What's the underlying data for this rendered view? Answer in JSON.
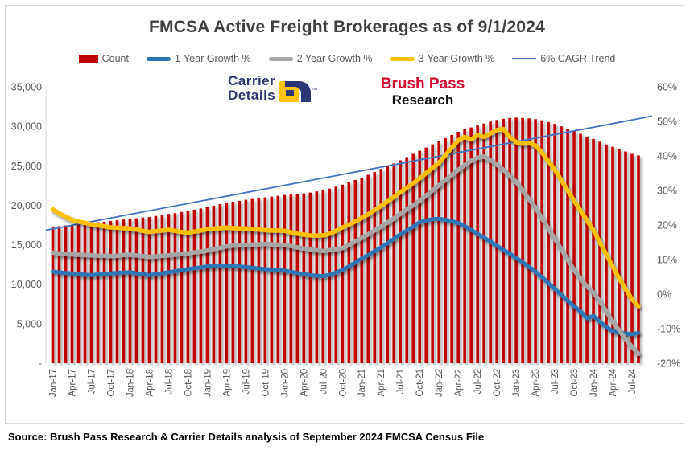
{
  "title": "FMCSA Active Freight Brokerages as of 9/1/2024",
  "source_note": "Source: Brush Pass Research & Carrier Details analysis of September 2024 FMCSA Census File",
  "logos": {
    "carrier_details": {
      "line1": "Carrier",
      "line2": "Details",
      "tm": "™"
    },
    "brush_pass": {
      "line1": "Brush Pass",
      "line2": "Research"
    }
  },
  "colors": {
    "bar_red": "#C00000",
    "growth1_blue": "#2E75B6",
    "growth2_gray": "#A6A6A6",
    "growth3_yellow": "#FFC000",
    "trend_blue": "#4472C4",
    "axis_text": "#595959",
    "title_text": "#3F3F3F",
    "border": "#D9D9D9"
  },
  "chart_data": {
    "type": "combo (monthly bars + growth lines)",
    "n_points": 92,
    "points_per_x_tick": 3,
    "left_axis": {
      "min": 0,
      "max": 35000,
      "ticks": [
        {
          "label": "35,000",
          "value": 35000
        },
        {
          "label": "30,000",
          "value": 30000
        },
        {
          "label": "25,000",
          "value": 25000
        },
        {
          "label": "20,000",
          "value": 20000
        },
        {
          "label": "15,000",
          "value": 15000
        },
        {
          "label": "10,000",
          "value": 10000
        },
        {
          "label": "5,000",
          "value": 5000
        },
        {
          "label": "-",
          "value": 0
        }
      ]
    },
    "right_axis": {
      "min": -20,
      "max": 60,
      "ticks": [
        {
          "label": "60%",
          "value": 60
        },
        {
          "label": "50%",
          "value": 50
        },
        {
          "label": "40%",
          "value": 40
        },
        {
          "label": "30%",
          "value": 30
        },
        {
          "label": "20%",
          "value": 20
        },
        {
          "label": "10%",
          "value": 10
        },
        {
          "label": "0%",
          "value": 0
        },
        {
          "label": "-10%",
          "value": -10
        },
        {
          "label": "-20%",
          "value": -20
        }
      ]
    },
    "x_tick_labels": [
      "Jan-17",
      "Apr-17",
      "Jul-17",
      "Oct-17",
      "Jan-18",
      "Apr-18",
      "Jul-18",
      "Oct-18",
      "Jan-19",
      "Apr-19",
      "Jul-19",
      "Oct-19",
      "Jan-20",
      "Apr-20",
      "Jul-20",
      "Oct-20",
      "Jan-21",
      "Apr-21",
      "Jul-21",
      "Oct-21",
      "Jan-22",
      "Apr-22",
      "Jul-22",
      "Oct-22",
      "Jan-23",
      "Apr-23",
      "Jul-23",
      "Oct-23",
      "Jan-24",
      "Apr-24",
      "Jul-24"
    ],
    "series": [
      {
        "name": "Count",
        "type": "bar",
        "axis": "left",
        "color": "#C00000",
        "values": [
          17300,
          17350,
          17450,
          17500,
          17600,
          17700,
          17750,
          17850,
          17900,
          18000,
          18100,
          18200,
          18300,
          18350,
          18450,
          18500,
          18650,
          18750,
          18900,
          19000,
          19150,
          19300,
          19450,
          19600,
          19800,
          19950,
          20150,
          20300,
          20450,
          20550,
          20700,
          20800,
          20900,
          21000,
          21100,
          21200,
          21300,
          21350,
          21450,
          21500,
          21600,
          21750,
          21900,
          22100,
          22350,
          22600,
          22900,
          23200,
          23500,
          23850,
          24200,
          24600,
          24950,
          25300,
          25700,
          26100,
          26500,
          26900,
          27300,
          27700,
          28100,
          28500,
          28900,
          29300,
          29600,
          29850,
          30100,
          30350,
          30600,
          30800,
          30950,
          31050,
          31100,
          31050,
          31000,
          30900,
          30750,
          30550,
          30300,
          30000,
          29700,
          29400,
          29050,
          28700,
          28400,
          28050,
          27700,
          27400,
          27100,
          26800,
          26500,
          26300
        ]
      },
      {
        "name": "1-Year Growth %",
        "type": "line",
        "axis": "right",
        "color": "#2E75B6",
        "values": [
          6.5,
          6.3,
          6.1,
          6.0,
          5.8,
          5.6,
          5.5,
          5.7,
          5.8,
          6.0,
          6.1,
          6.2,
          6.3,
          6.0,
          5.8,
          5.5,
          5.8,
          6.0,
          6.3,
          6.6,
          6.9,
          7.2,
          7.5,
          7.7,
          8.0,
          8.1,
          8.2,
          8.2,
          8.1,
          8.0,
          7.8,
          7.6,
          7.4,
          7.2,
          7.1,
          6.9,
          6.8,
          6.5,
          6.1,
          5.8,
          5.5,
          5.3,
          5.2,
          5.6,
          6.2,
          7.0,
          8.0,
          9.1,
          10.3,
          11.3,
          12.4,
          13.5,
          14.7,
          16.0,
          17.3,
          18.4,
          19.5,
          20.8,
          21.3,
          21.7,
          21.8,
          21.5,
          21.1,
          20.6,
          19.7,
          18.6,
          17.5,
          16.3,
          15.2,
          14.0,
          12.8,
          11.7,
          10.5,
          9.2,
          7.9,
          6.5,
          4.9,
          3.2,
          1.5,
          -0.2,
          -1.9,
          -3.5,
          -5.0,
          -7.0,
          -6.3,
          -8.0,
          -9.5,
          -10.7,
          -11.2,
          -11.4,
          -11.6,
          -11.2
        ]
      },
      {
        "name": "2 Year Growth %",
        "type": "line",
        "axis": "right",
        "color": "#A6A6A6",
        "values": [
          12.0,
          11.8,
          11.6,
          11.5,
          11.4,
          11.3,
          11.2,
          11.1,
          11.1,
          11.0,
          11.1,
          11.3,
          11.4,
          11.2,
          11.0,
          10.8,
          10.9,
          11.1,
          11.2,
          11.4,
          11.6,
          11.8,
          12.1,
          12.3,
          12.6,
          13.0,
          13.4,
          13.8,
          14.0,
          14.1,
          14.2,
          14.3,
          14.4,
          14.5,
          14.4,
          14.3,
          14.2,
          13.9,
          13.5,
          13.2,
          12.9,
          12.7,
          12.5,
          12.7,
          13.0,
          13.3,
          14.2,
          15.2,
          16.2,
          17.3,
          18.4,
          19.5,
          20.7,
          21.9,
          23.2,
          24.5,
          25.7,
          27.0,
          28.5,
          30.0,
          31.5,
          33.0,
          34.5,
          36.0,
          37.3,
          38.6,
          39.5,
          39.8,
          38.8,
          37.5,
          36.0,
          34.3,
          32.5,
          30.0,
          27.5,
          25.0,
          22.0,
          19.0,
          16.0,
          13.0,
          10.0,
          7.0,
          4.5,
          2.2,
          0.5,
          -2.0,
          -5.0,
          -8.0,
          -10.5,
          -13.0,
          -15.3,
          -17.3
        ]
      },
      {
        "name": "3-Year Growth %",
        "type": "line",
        "axis": "right",
        "color": "#FFC000",
        "values": [
          24.5,
          23.4,
          22.4,
          21.5,
          21.0,
          20.6,
          20.2,
          19.9,
          19.6,
          19.3,
          19.2,
          19.1,
          19.0,
          18.7,
          18.3,
          18.0,
          18.2,
          18.4,
          18.6,
          18.3,
          18.0,
          17.8,
          18.1,
          18.4,
          18.8,
          19.0,
          19.1,
          19.2,
          19.1,
          19.0,
          19.0,
          18.8,
          18.7,
          18.5,
          18.4,
          18.4,
          18.3,
          17.9,
          17.5,
          17.2,
          17.0,
          16.9,
          17.0,
          17.5,
          18.3,
          19.3,
          20.1,
          21.0,
          22.0,
          23.1,
          24.3,
          25.5,
          26.8,
          28.1,
          29.5,
          30.8,
          32.1,
          33.5,
          35.0,
          36.5,
          38.0,
          40.2,
          42.4,
          44.5,
          45.5,
          44.8,
          46.0,
          45.5,
          46.5,
          47.5,
          47.8,
          45.5,
          44.0,
          43.5,
          43.8,
          43.0,
          41.0,
          38.5,
          36.0,
          33.0,
          30.0,
          27.0,
          24.2,
          21.3,
          18.5,
          15.0,
          11.5,
          8.0,
          4.5,
          1.5,
          -1.5,
          -3.5
        ]
      },
      {
        "name": "6% CAGR Trend",
        "type": "line-straight",
        "axis": "right",
        "color": "#4472C4",
        "start_pct": 18.5,
        "end_pct": 51.5
      }
    ]
  }
}
